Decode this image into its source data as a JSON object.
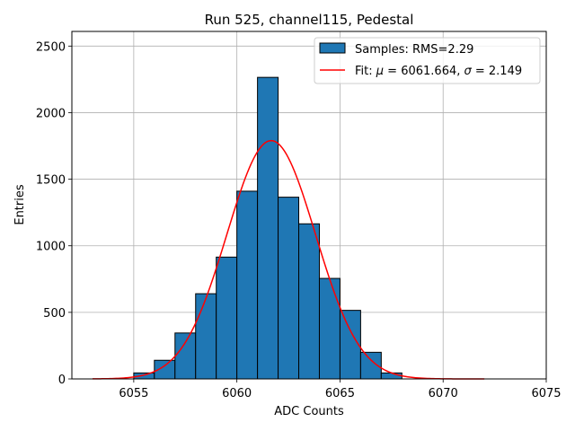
{
  "chart_data": {
    "type": "bar",
    "title": "Run 525, channel115, Pedestal",
    "xlabel": "ADC Counts",
    "ylabel": "Entries",
    "xlim": [
      6052,
      6075
    ],
    "ylim": [
      0,
      2610
    ],
    "xticks": [
      6055,
      6060,
      6065,
      6070,
      6075
    ],
    "yticks": [
      0,
      500,
      1000,
      1500,
      2000,
      2500
    ],
    "grid": true,
    "legend_position": "top-right",
    "bin_width": 1,
    "histogram": {
      "name": "Samples: RMS=2.29",
      "color": "#1f77b4",
      "bin_edges": [
        6055,
        6056,
        6057,
        6058,
        6059,
        6060,
        6061,
        6062,
        6063,
        6064,
        6065,
        6066,
        6067,
        6068
      ],
      "counts": [
        45,
        140,
        345,
        640,
        915,
        1410,
        2265,
        1365,
        1165,
        755,
        515,
        200,
        45
      ]
    },
    "fit": {
      "name_prefix": "Fit: ",
      "mu_symbol": "μ",
      "sigma_symbol": "σ",
      "mu": 6061.664,
      "sigma": 2.149,
      "mu_text": " = 6061.664, ",
      "sigma_text": " = 2.149",
      "amplitude": 1790,
      "x_range": [
        6053,
        6072
      ],
      "color": "#ff0000"
    }
  }
}
